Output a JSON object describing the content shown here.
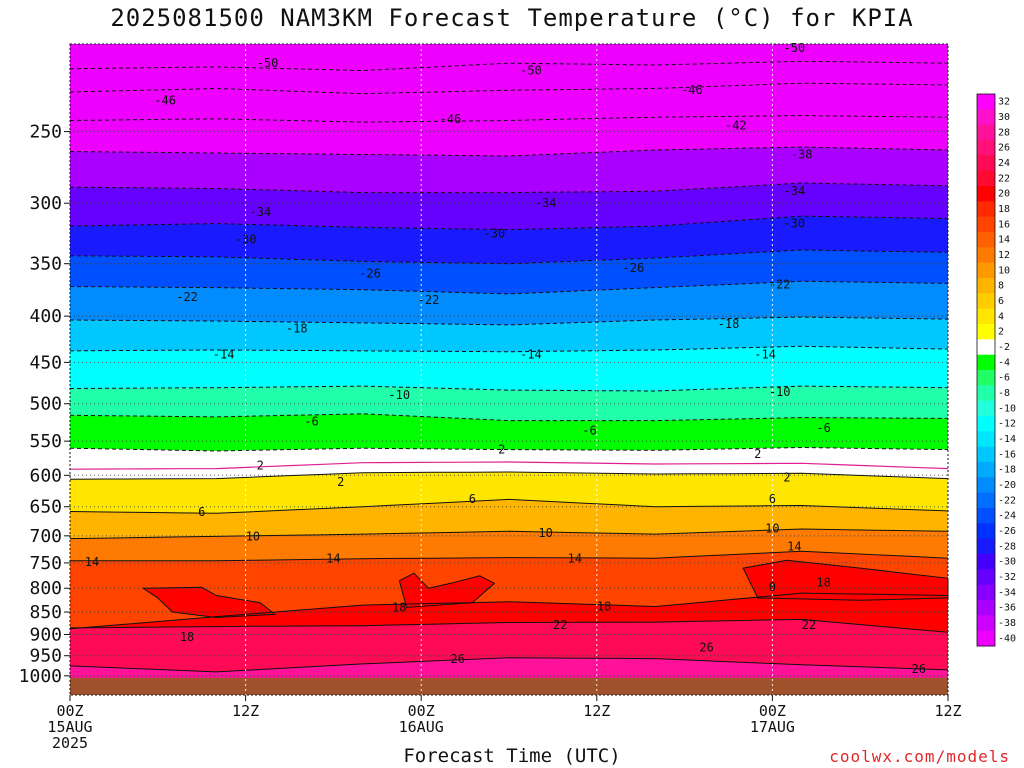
{
  "title": "2025081500 NAM3KM Forecast Temperature (°C) for KPIA",
  "x_axis_label": "Forecast Time (UTC)",
  "credit": "coolwx.com/models",
  "chart_data": {
    "type": "heatmap",
    "title": "2025081500 NAM3KM Forecast Temperature (°C) for KPIA",
    "xlabel": "Forecast Time (UTC)",
    "ylabel": "",
    "x_ticks": [
      {
        "hour": 0,
        "lines": [
          "00Z",
          "15AUG",
          "2025"
        ]
      },
      {
        "hour": 12,
        "lines": [
          "12Z"
        ]
      },
      {
        "hour": 24,
        "lines": [
          "00Z",
          "16AUG"
        ]
      },
      {
        "hour": 36,
        "lines": [
          "12Z"
        ]
      },
      {
        "hour": 48,
        "lines": [
          "00Z",
          "17AUG"
        ]
      },
      {
        "hour": 60,
        "lines": [
          "12Z"
        ]
      }
    ],
    "xlim": [
      0,
      60
    ],
    "y_scale": "log-pressure",
    "ylim": [
      1050,
      200
    ],
    "y_ticks": [
      250,
      300,
      350,
      400,
      450,
      500,
      550,
      600,
      650,
      700,
      750,
      800,
      850,
      900,
      950,
      1000
    ],
    "ground_level_hPa": 1000,
    "colorbar_levels": [
      32,
      30,
      28,
      26,
      24,
      22,
      20,
      18,
      16,
      14,
      12,
      10,
      8,
      6,
      4,
      2,
      -2,
      -4,
      -6,
      -8,
      -10,
      -12,
      -14,
      -16,
      -18,
      -20,
      -22,
      -24,
      -26,
      -28,
      -30,
      -32,
      -34,
      -36,
      -38,
      -40
    ],
    "colorbar_colors": [
      "#ff00ff",
      "#ff11cc",
      "#ff1199",
      "#ff1177",
      "#ff0a55",
      "#ff0a33",
      "#ff0000",
      "#ff2a00",
      "#ff4400",
      "#ff6000",
      "#ff7a00",
      "#ff9900",
      "#ffb400",
      "#ffcc00",
      "#ffe600",
      "#ffff00",
      "#ffffff",
      "#00ff00",
      "#22ff66",
      "#22ffaa",
      "#22ffdd",
      "#00ffff",
      "#00e6ff",
      "#00c8ff",
      "#00aaff",
      "#008cff",
      "#006eff",
      "#0050ff",
      "#0032ff",
      "#1a1aff",
      "#4400ff",
      "#6600ff",
      "#8800ff",
      "#aa00ff",
      "#cc00ff",
      "#ee00ff"
    ],
    "isotherm_levels": [
      -50,
      -46,
      -42,
      -38,
      -34,
      -30,
      -26,
      -22,
      -18,
      -14,
      -10,
      -6,
      -2,
      2,
      6,
      10,
      14,
      18,
      22,
      26
    ],
    "isotherms": [
      {
        "temp": -50,
        "points": [
          [
            0,
            213
          ],
          [
            10,
            212
          ],
          [
            20,
            214
          ],
          [
            30,
            210
          ],
          [
            40,
            211
          ],
          [
            50,
            209
          ],
          [
            60,
            210
          ]
        ]
      },
      {
        "temp": -46,
        "points": [
          [
            0,
            226
          ],
          [
            10,
            224
          ],
          [
            20,
            227
          ],
          [
            30,
            225
          ],
          [
            40,
            224
          ],
          [
            50,
            221
          ],
          [
            60,
            222
          ]
        ]
      },
      {
        "temp": -42,
        "points": [
          [
            0,
            243
          ],
          [
            10,
            242
          ],
          [
            20,
            244
          ],
          [
            30,
            243
          ],
          [
            40,
            241
          ],
          [
            50,
            240
          ],
          [
            60,
            241
          ]
        ]
      },
      {
        "temp": -38,
        "points": [
          [
            0,
            263
          ],
          [
            10,
            264
          ],
          [
            20,
            265
          ],
          [
            30,
            266
          ],
          [
            40,
            262
          ],
          [
            50,
            260
          ],
          [
            60,
            262
          ]
        ]
      },
      {
        "temp": -34,
        "points": [
          [
            0,
            288
          ],
          [
            10,
            289
          ],
          [
            20,
            292
          ],
          [
            30,
            292
          ],
          [
            40,
            291
          ],
          [
            50,
            285
          ],
          [
            60,
            287
          ]
        ]
      },
      {
        "temp": -30,
        "points": [
          [
            0,
            318
          ],
          [
            10,
            316
          ],
          [
            20,
            319
          ],
          [
            30,
            321
          ],
          [
            40,
            318
          ],
          [
            50,
            310
          ],
          [
            60,
            312
          ]
        ]
      },
      {
        "temp": -26,
        "points": [
          [
            0,
            343
          ],
          [
            10,
            344
          ],
          [
            20,
            348
          ],
          [
            30,
            350
          ],
          [
            40,
            345
          ],
          [
            50,
            338
          ],
          [
            60,
            340
          ]
        ]
      },
      {
        "temp": -22,
        "points": [
          [
            0,
            371
          ],
          [
            10,
            372
          ],
          [
            20,
            374
          ],
          [
            30,
            378
          ],
          [
            40,
            372
          ],
          [
            50,
            366
          ],
          [
            60,
            368
          ]
        ]
      },
      {
        "temp": -18,
        "points": [
          [
            0,
            404
          ],
          [
            10,
            405
          ],
          [
            20,
            407
          ],
          [
            30,
            409
          ],
          [
            40,
            404
          ],
          [
            50,
            401
          ],
          [
            60,
            403
          ]
        ]
      },
      {
        "temp": -14,
        "points": [
          [
            0,
            437
          ],
          [
            10,
            436
          ],
          [
            20,
            437
          ],
          [
            30,
            438
          ],
          [
            40,
            436
          ],
          [
            50,
            432
          ],
          [
            60,
            435
          ]
        ]
      },
      {
        "temp": -10,
        "points": [
          [
            0,
            481
          ],
          [
            10,
            480
          ],
          [
            20,
            478
          ],
          [
            30,
            483
          ],
          [
            40,
            484
          ],
          [
            50,
            478
          ],
          [
            60,
            480
          ]
        ]
      },
      {
        "temp": -6,
        "points": [
          [
            0,
            515
          ],
          [
            10,
            517
          ],
          [
            20,
            513
          ],
          [
            30,
            522
          ],
          [
            40,
            522
          ],
          [
            50,
            518
          ],
          [
            60,
            519
          ]
        ]
      },
      {
        "temp": -2,
        "points": [
          [
            0,
            560
          ],
          [
            10,
            564
          ],
          [
            20,
            560
          ],
          [
            30,
            562
          ],
          [
            40,
            563
          ],
          [
            50,
            559
          ],
          [
            60,
            562
          ]
        ]
      },
      {
        "temp": 2,
        "points": [
          [
            0,
            606
          ],
          [
            10,
            605
          ],
          [
            20,
            596
          ],
          [
            30,
            595
          ],
          [
            40,
            598
          ],
          [
            50,
            597
          ],
          [
            60,
            605
          ]
        ]
      },
      {
        "temp": 6,
        "points": [
          [
            0,
            658
          ],
          [
            10,
            661
          ],
          [
            20,
            650
          ],
          [
            30,
            638
          ],
          [
            40,
            650
          ],
          [
            50,
            648
          ],
          [
            60,
            657
          ]
        ]
      },
      {
        "temp": 10,
        "points": [
          [
            0,
            705
          ],
          [
            10,
            701
          ],
          [
            20,
            697
          ],
          [
            30,
            692
          ],
          [
            40,
            697
          ],
          [
            50,
            688
          ],
          [
            60,
            692
          ]
        ]
      },
      {
        "temp": 14,
        "points": [
          [
            0,
            746
          ],
          [
            10,
            746
          ],
          [
            20,
            742
          ],
          [
            30,
            740
          ],
          [
            40,
            741
          ],
          [
            50,
            728
          ],
          [
            60,
            741
          ]
        ]
      },
      {
        "temp": 18,
        "points": [
          [
            0,
            887
          ],
          [
            10,
            860
          ],
          [
            20,
            835
          ],
          [
            30,
            828
          ],
          [
            40,
            838
          ],
          [
            50,
            810
          ],
          [
            60,
            815
          ]
        ]
      },
      {
        "temp": 22,
        "points": [
          [
            0,
            885
          ],
          [
            10,
            882
          ],
          [
            20,
            880
          ],
          [
            30,
            873
          ],
          [
            40,
            872
          ],
          [
            50,
            866
          ],
          [
            60,
            895
          ]
        ]
      },
      {
        "temp": 26,
        "points": [
          [
            0,
            975
          ],
          [
            10,
            990
          ],
          [
            20,
            970
          ],
          [
            30,
            955
          ],
          [
            40,
            957
          ],
          [
            50,
            972
          ],
          [
            60,
            985
          ]
        ]
      }
    ],
    "contour_labels": [
      {
        "text": "-50",
        "hour": 13.5,
        "hPa": 210
      },
      {
        "text": "-50",
        "hour": 31.5,
        "hPa": 214
      },
      {
        "text": "-50",
        "hour": 49.5,
        "hPa": 202
      },
      {
        "text": "-46",
        "hour": 6.5,
        "hPa": 231
      },
      {
        "text": "-46",
        "hour": 26,
        "hPa": 242
      },
      {
        "text": "-46",
        "hour": 42.5,
        "hPa": 225
      },
      {
        "text": "-42",
        "hour": 45.5,
        "hPa": 246
      },
      {
        "text": "-38",
        "hour": 50,
        "hPa": 265
      },
      {
        "text": "-34",
        "hour": 13,
        "hPa": 307
      },
      {
        "text": "-34",
        "hour": 32.5,
        "hPa": 300
      },
      {
        "text": "-34",
        "hour": 49.5,
        "hPa": 291
      },
      {
        "text": "-30",
        "hour": 12,
        "hPa": 329
      },
      {
        "text": "-30",
        "hour": 29,
        "hPa": 324
      },
      {
        "text": "-30",
        "hour": 49.5,
        "hPa": 316
      },
      {
        "text": "-26",
        "hour": 20.5,
        "hPa": 359
      },
      {
        "text": "-26",
        "hour": 38.5,
        "hPa": 354
      },
      {
        "text": "-22",
        "hour": 8,
        "hPa": 381
      },
      {
        "text": "-22",
        "hour": 24.5,
        "hPa": 384
      },
      {
        "text": "-22",
        "hour": 48.5,
        "hPa": 369
      },
      {
        "text": "-18",
        "hour": 15.5,
        "hPa": 413
      },
      {
        "text": "-18",
        "hour": 45,
        "hPa": 408
      },
      {
        "text": "-14",
        "hour": 10.5,
        "hPa": 441
      },
      {
        "text": "-14",
        "hour": 31.5,
        "hPa": 441
      },
      {
        "text": "-14",
        "hour": 47.5,
        "hPa": 441
      },
      {
        "text": "-10",
        "hour": 22.5,
        "hPa": 489
      },
      {
        "text": "-10",
        "hour": 48.5,
        "hPa": 485
      },
      {
        "text": "-6",
        "hour": 16.5,
        "hPa": 523
      },
      {
        "text": "-6",
        "hour": 35.5,
        "hPa": 535
      },
      {
        "text": "-6",
        "hour": 51.5,
        "hPa": 532
      },
      {
        "text": "2",
        "hour": 13,
        "hPa": 585
      },
      {
        "text": "2",
        "hour": 29.5,
        "hPa": 562
      },
      {
        "text": "2",
        "hour": 47,
        "hPa": 568
      },
      {
        "text": "2",
        "hour": 18.5,
        "hPa": 610
      },
      {
        "text": "2",
        "hour": 49,
        "hPa": 603
      },
      {
        "text": "6",
        "hour": 9,
        "hPa": 659
      },
      {
        "text": "6",
        "hour": 27.5,
        "hPa": 637
      },
      {
        "text": "6",
        "hour": 48,
        "hPa": 637
      },
      {
        "text": "10",
        "hour": 12.5,
        "hPa": 701
      },
      {
        "text": "10",
        "hour": 32.5,
        "hPa": 695
      },
      {
        "text": "10",
        "hour": 48,
        "hPa": 687
      },
      {
        "text": "14",
        "hour": 1.5,
        "hPa": 748
      },
      {
        "text": "14",
        "hour": 18,
        "hPa": 742
      },
      {
        "text": "14",
        "hour": 34.5,
        "hPa": 742
      },
      {
        "text": "14",
        "hour": 49.5,
        "hPa": 719
      },
      {
        "text": "18",
        "hour": 22.5,
        "hPa": 840
      },
      {
        "text": "18",
        "hour": 36.5,
        "hPa": 838
      },
      {
        "text": "18",
        "hour": 51.5,
        "hPa": 788
      },
      {
        "text": "18",
        "hour": 8,
        "hPa": 906
      },
      {
        "text": "0",
        "hour": 48,
        "hPa": 797
      },
      {
        "text": "22",
        "hour": 33.5,
        "hPa": 878
      },
      {
        "text": "22",
        "hour": 50.5,
        "hPa": 878
      },
      {
        "text": "26",
        "hour": 43.5,
        "hPa": 930
      },
      {
        "text": "26",
        "hour": 26.5,
        "hPa": 958
      },
      {
        "text": "26",
        "hour": 58,
        "hPa": 983
      }
    ],
    "warm_patches": [
      {
        "temp": 20,
        "points": [
          [
            5,
            800
          ],
          [
            9,
            798
          ],
          [
            10,
            815
          ],
          [
            13,
            830
          ],
          [
            14,
            855
          ],
          [
            10,
            862
          ],
          [
            7,
            850
          ],
          [
            6,
            820
          ]
        ]
      },
      {
        "temp": 20,
        "points": [
          [
            22.5,
            785
          ],
          [
            23.5,
            770
          ],
          [
            24.5,
            800
          ],
          [
            26,
            790
          ],
          [
            28,
            775
          ],
          [
            29,
            790
          ],
          [
            27.5,
            830
          ],
          [
            23,
            840
          ]
        ]
      },
      {
        "temp": 20,
        "points": [
          [
            46,
            760
          ],
          [
            49,
            745
          ],
          [
            54,
            760
          ],
          [
            60,
            780
          ],
          [
            60,
            820
          ],
          [
            54,
            825
          ],
          [
            47,
            820
          ]
        ]
      }
    ]
  }
}
